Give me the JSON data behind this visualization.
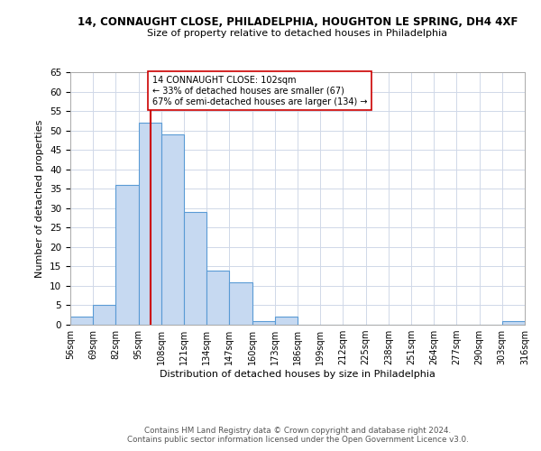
{
  "title1": "14, CONNAUGHT CLOSE, PHILADELPHIA, HOUGHTON LE SPRING, DH4 4XF",
  "title2": "Size of property relative to detached houses in Philadelphia",
  "xlabel": "Distribution of detached houses by size in Philadelphia",
  "ylabel": "Number of detached properties",
  "bin_edges": [
    56,
    69,
    82,
    95,
    108,
    121,
    134,
    147,
    160,
    173,
    186,
    199,
    212,
    225,
    238,
    251,
    264,
    277,
    290,
    303,
    316
  ],
  "bar_heights": [
    2,
    5,
    36,
    52,
    49,
    29,
    14,
    11,
    1,
    2,
    0,
    0,
    0,
    0,
    0,
    0,
    0,
    0,
    0,
    1
  ],
  "bar_color": "#c6d9f1",
  "bar_edge_color": "#5a9bd5",
  "vline_x": 102,
  "vline_color": "#cc0000",
  "annotation_text": "14 CONNAUGHT CLOSE: 102sqm\n← 33% of detached houses are smaller (67)\n67% of semi-detached houses are larger (134) →",
  "annotation_box_color": "#ffffff",
  "annotation_box_edge": "#cc0000",
  "ylim": [
    0,
    65
  ],
  "yticks": [
    0,
    5,
    10,
    15,
    20,
    25,
    30,
    35,
    40,
    45,
    50,
    55,
    60,
    65
  ],
  "footer1": "Contains HM Land Registry data © Crown copyright and database right 2024.",
  "footer2": "Contains public sector information licensed under the Open Government Licence v3.0.",
  "bg_color": "#ffffff",
  "grid_color": "#d0d8e8"
}
